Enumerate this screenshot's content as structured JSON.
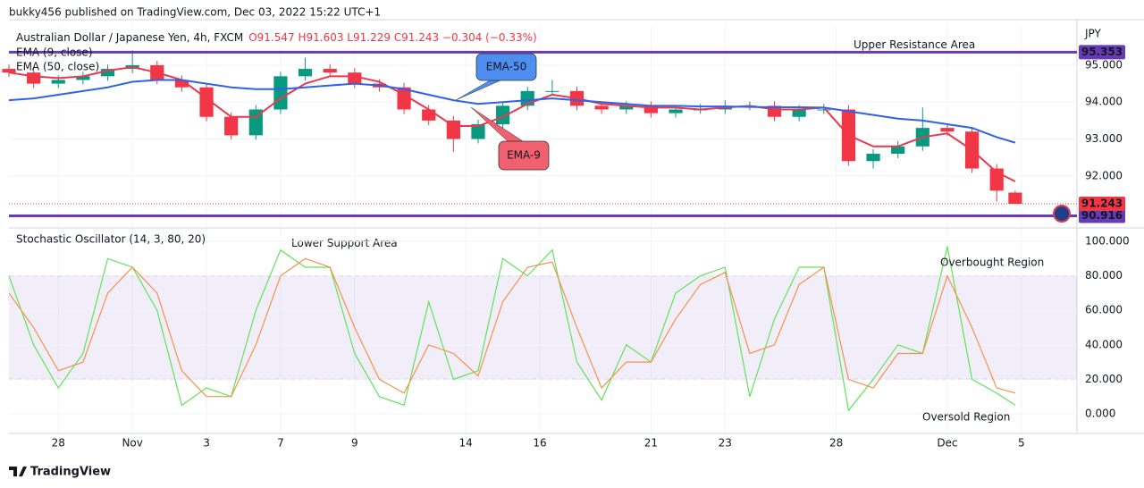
{
  "header": "bukky456 published on TradingView.com, Dec 03, 2022 15:22 UTC+1",
  "footer": "TradingView",
  "chart_data": [
    {
      "type": "candlestick",
      "title": "Australian Dollar / Japanese Yen, 4h, FXCM",
      "ohlc_text": "O91.547 H91.603 L91.229 C91.243 −0.304 (−0.33%)",
      "unit": "JPY",
      "up_color": "#089981",
      "down_color": "#f23645",
      "x": [
        0,
        4,
        8,
        12,
        16,
        20,
        24,
        28,
        32,
        36,
        40,
        44,
        48,
        52,
        56,
        60,
        64,
        68,
        72,
        76,
        80,
        84,
        88,
        92,
        96,
        100,
        104,
        108,
        112,
        116,
        120,
        124,
        128,
        132,
        136,
        140,
        144,
        148,
        152,
        156,
        160,
        163
      ],
      "open": [
        94.9,
        94.8,
        94.5,
        94.6,
        94.7,
        94.9,
        95.0,
        94.6,
        94.4,
        93.6,
        93.1,
        93.8,
        94.7,
        94.9,
        94.8,
        94.5,
        94.4,
        93.8,
        93.5,
        93.0,
        93.4,
        93.9,
        94.3,
        94.3,
        93.9,
        93.8,
        93.9,
        93.7,
        93.8,
        93.8,
        93.9,
        93.9,
        93.6,
        93.8,
        93.8,
        92.4,
        92.6,
        92.8,
        93.3,
        93.2,
        92.2,
        91.547
      ],
      "high": [
        95.02,
        94.92,
        94.72,
        94.82,
        95.02,
        95.4,
        95.12,
        94.72,
        94.52,
        93.72,
        93.92,
        94.82,
        95.2,
        95.02,
        94.92,
        94.62,
        94.52,
        93.92,
        93.62,
        93.52,
        94.02,
        94.42,
        94.6,
        94.42,
        94.02,
        94.02,
        94.02,
        93.92,
        93.95,
        94.05,
        94.02,
        94.02,
        93.92,
        93.95,
        93.92,
        92.72,
        92.95,
        93.85,
        93.42,
        93.32,
        92.32,
        91.603
      ],
      "low": [
        94.68,
        94.38,
        94.38,
        94.48,
        94.58,
        94.78,
        94.48,
        94.28,
        93.48,
        92.98,
        92.98,
        93.68,
        94.58,
        94.68,
        94.38,
        94.28,
        93.68,
        93.38,
        92.65,
        92.88,
        93.28,
        93.78,
        94.18,
        93.78,
        93.68,
        93.68,
        93.58,
        93.58,
        93.68,
        93.68,
        93.78,
        93.48,
        93.48,
        93.68,
        92.28,
        92.2,
        92.48,
        92.68,
        93.08,
        92.08,
        91.3,
        91.229
      ],
      "close": [
        94.8,
        94.5,
        94.6,
        94.7,
        94.9,
        95.0,
        94.6,
        94.4,
        93.6,
        93.1,
        93.8,
        94.7,
        94.9,
        94.8,
        94.5,
        94.4,
        93.8,
        93.5,
        93.0,
        93.4,
        93.9,
        94.3,
        94.3,
        93.9,
        93.8,
        93.9,
        93.7,
        93.8,
        93.8,
        93.9,
        93.9,
        93.6,
        93.8,
        93.8,
        92.4,
        92.6,
        92.8,
        93.3,
        93.2,
        92.2,
        91.6,
        91.243
      ],
      "series": [
        {
          "name": "EMA (9, close)",
          "color": "#e8394f",
          "values": [
            94.8,
            94.7,
            94.65,
            94.7,
            94.85,
            94.95,
            94.8,
            94.6,
            94.1,
            93.6,
            93.6,
            94.1,
            94.5,
            94.7,
            94.7,
            94.55,
            94.2,
            93.8,
            93.35,
            93.35,
            93.6,
            93.95,
            94.2,
            94.1,
            93.95,
            93.9,
            93.85,
            93.85,
            93.8,
            93.85,
            93.9,
            93.8,
            93.8,
            93.85,
            93.1,
            92.8,
            92.8,
            93.05,
            93.15,
            92.7,
            92.1,
            91.85
          ]
        },
        {
          "name": "EMA (50, close)",
          "color": "#2f62e8",
          "values": [
            94.05,
            94.1,
            94.2,
            94.3,
            94.4,
            94.55,
            94.6,
            94.6,
            94.5,
            94.4,
            94.35,
            94.35,
            94.4,
            94.45,
            94.5,
            94.45,
            94.35,
            94.2,
            94.05,
            93.95,
            94.0,
            94.05,
            94.1,
            94.05,
            94.0,
            93.95,
            93.9,
            93.9,
            93.88,
            93.88,
            93.87,
            93.86,
            93.86,
            93.85,
            93.75,
            93.65,
            93.55,
            93.5,
            93.4,
            93.3,
            93.05,
            92.9
          ]
        }
      ],
      "xlim": [
        0,
        173
      ],
      "xticks": [
        {
          "value": 8,
          "label": "28"
        },
        {
          "value": 20,
          "label": "Nov"
        },
        {
          "value": 32,
          "label": "3"
        },
        {
          "value": 44,
          "label": "7"
        },
        {
          "value": 56,
          "label": "9"
        },
        {
          "value": 74,
          "label": "14"
        },
        {
          "value": 86,
          "label": "16"
        },
        {
          "value": 104,
          "label": "21"
        },
        {
          "value": 116,
          "label": "23"
        },
        {
          "value": 134,
          "label": "28"
        },
        {
          "value": 152,
          "label": "Dec"
        },
        {
          "value": 164,
          "label": "5"
        }
      ],
      "ylim": [
        90.59,
        96.04
      ],
      "yticks": [
        {
          "value": 92,
          "label": "92.000"
        },
        {
          "value": 93,
          "label": "93.000"
        },
        {
          "value": 94,
          "label": "94.000"
        },
        {
          "value": 95,
          "label": "95.000"
        }
      ],
      "grid": true,
      "last_price": {
        "value": 91.243,
        "label": "91.243",
        "color": "#f23645"
      },
      "levels": [
        {
          "text": "Upper Resistance Area",
          "value": 95.353,
          "label": "95.353",
          "color": "#673ab7"
        },
        {
          "text": "Lower Support Area",
          "value": 90.916,
          "label": "90.916",
          "color": "#673ab7"
        }
      ],
      "callouts": [
        {
          "text": "EMA-50",
          "color": "#4d8ef0"
        },
        {
          "text": "EMA-9",
          "color": "#f0606f"
        }
      ]
    },
    {
      "type": "line",
      "title": "Stochastic Oscillator (14, 3, 80, 20)",
      "x": [
        0,
        4,
        8,
        12,
        16,
        20,
        24,
        28,
        32,
        36,
        40,
        44,
        48,
        52,
        56,
        60,
        64,
        68,
        72,
        76,
        80,
        84,
        88,
        92,
        96,
        100,
        104,
        108,
        112,
        116,
        120,
        124,
        128,
        132,
        136,
        140,
        144,
        148,
        152,
        156,
        160,
        163
      ],
      "series": [
        {
          "color": "#5fe35a",
          "values": [
            80,
            40,
            15,
            35,
            90,
            85,
            60,
            5,
            15,
            10,
            60,
            95,
            85,
            85,
            35,
            10,
            5,
            65,
            20,
            25,
            90,
            80,
            95,
            30,
            8,
            40,
            30,
            70,
            80,
            85,
            10,
            55,
            85,
            85,
            2,
            20,
            40,
            35,
            97,
            20,
            12,
            5
          ]
        },
        {
          "color": "#f7904a",
          "values": [
            70,
            50,
            25,
            30,
            70,
            85,
            70,
            25,
            10,
            10,
            40,
            80,
            90,
            85,
            50,
            20,
            12,
            40,
            35,
            22,
            65,
            85,
            88,
            50,
            15,
            30,
            30,
            55,
            75,
            82,
            35,
            40,
            75,
            85,
            20,
            15,
            35,
            35,
            80,
            50,
            15,
            12
          ]
        }
      ],
      "band": [
        20,
        80
      ],
      "band_color": "#7e57c2",
      "xlim": [
        0,
        173
      ],
      "ylim": [
        -11.4,
        107.8
      ],
      "yticks": [
        {
          "value": 0,
          "label": "0.000"
        },
        {
          "value": 20,
          "label": "20.000"
        },
        {
          "value": 40,
          "label": "40.000"
        },
        {
          "value": 60,
          "label": "60.000"
        },
        {
          "value": 80,
          "label": "80.000"
        },
        {
          "value": 100,
          "label": "100.000"
        }
      ],
      "grid": true,
      "annotations": [
        {
          "text": "Overbought Region"
        },
        {
          "text": "Oversold Region"
        }
      ]
    }
  ]
}
